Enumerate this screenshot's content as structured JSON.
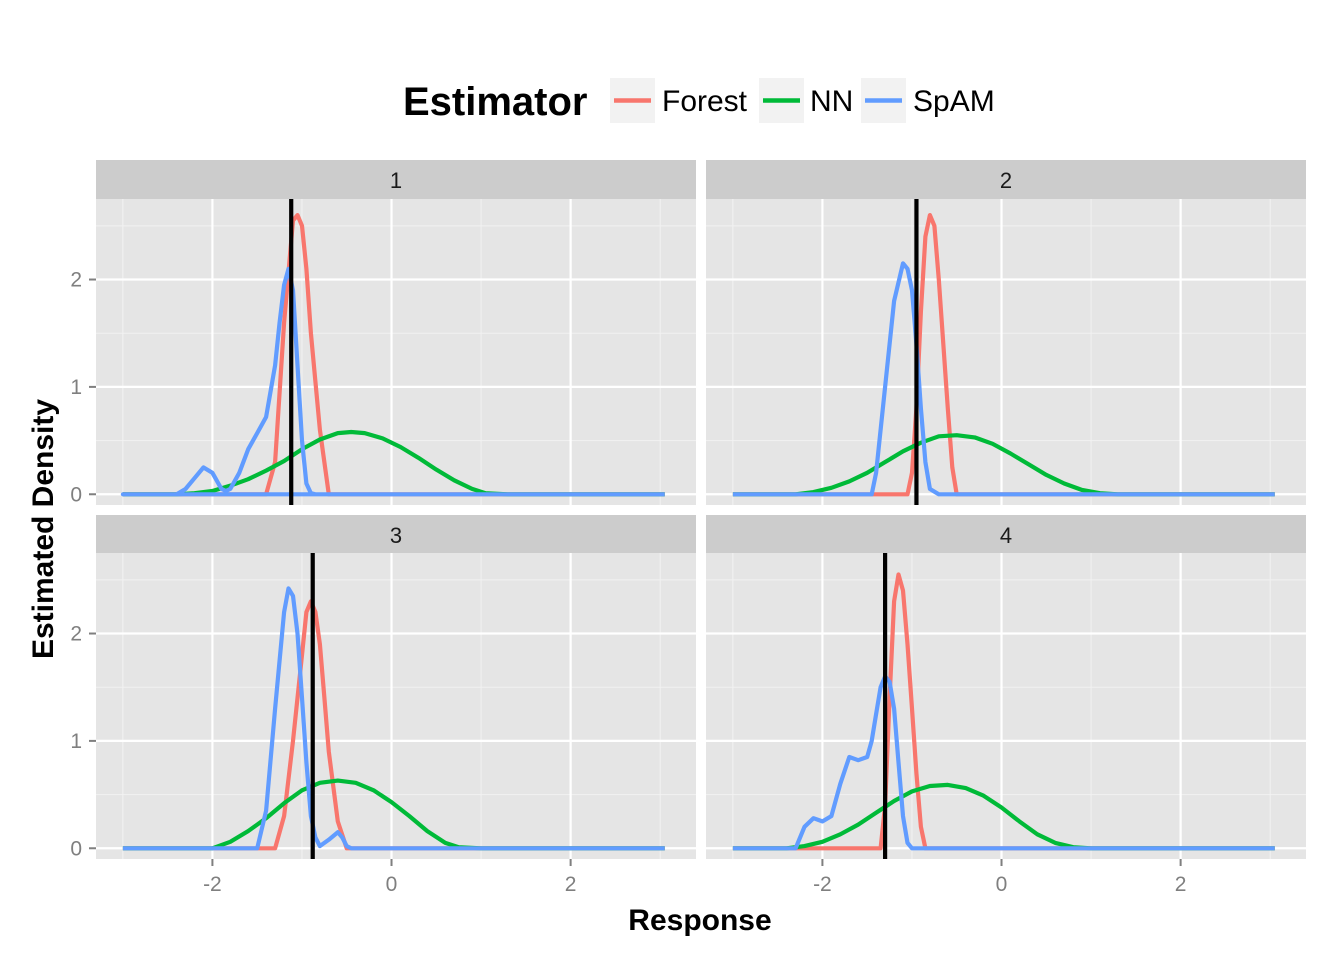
{
  "chart_data": {
    "type": "line",
    "legend": {
      "title": "Estimator",
      "position": "top",
      "items": [
        {
          "label": "Forest",
          "color": "#F8766D"
        },
        {
          "label": "NN",
          "color": "#00BA38"
        },
        {
          "label": "SpAM",
          "color": "#619CFF"
        }
      ]
    },
    "xlabel": "Response",
    "ylabel": "Estimated Density",
    "xlim": [
      -3.3,
      3.4
    ],
    "ylim": [
      -0.1,
      2.75
    ],
    "x_ticks": [
      -2,
      0,
      2
    ],
    "x_tick_labels": [
      "-2",
      "0",
      "2"
    ],
    "y_ticks": [
      0,
      1,
      2
    ],
    "y_tick_labels": [
      "0",
      "1",
      "2"
    ],
    "grid": true,
    "reference_line_color": "#000000",
    "panels": [
      {
        "label": "1",
        "reference_x": -1.12,
        "series": [
          {
            "name": "Forest",
            "x": [
              -3,
              -1.4,
              -1.3,
              -1.2,
              -1.1,
              -1.05,
              -1.0,
              -0.95,
              -0.9,
              -0.8,
              -0.7,
              3.05
            ],
            "y": [
              0,
              0,
              0.3,
              1.6,
              2.55,
              2.6,
              2.5,
              2.1,
              1.5,
              0.6,
              0,
              0
            ]
          },
          {
            "name": "NN",
            "x": [
              -3,
              -2.4,
              -2.2,
              -2.0,
              -1.8,
              -1.6,
              -1.4,
              -1.2,
              -1.0,
              -0.8,
              -0.6,
              -0.45,
              -0.3,
              -0.1,
              0.1,
              0.3,
              0.5,
              0.7,
              0.9,
              1.05,
              1.3,
              3.05
            ],
            "y": [
              0,
              0,
              0.01,
              0.03,
              0.08,
              0.14,
              0.22,
              0.31,
              0.42,
              0.51,
              0.57,
              0.58,
              0.57,
              0.52,
              0.44,
              0.34,
              0.23,
              0.13,
              0.05,
              0.01,
              0,
              0
            ]
          },
          {
            "name": "SpAM",
            "x": [
              -3,
              -2.4,
              -2.3,
              -2.2,
              -2.1,
              -2.0,
              -1.9,
              -1.85,
              -1.8,
              -1.7,
              -1.6,
              -1.5,
              -1.4,
              -1.3,
              -1.25,
              -1.2,
              -1.15,
              -1.1,
              -1.05,
              -1.0,
              -0.95,
              -0.9,
              -0.85,
              -3.0,
              3.05
            ],
            "y": [
              0,
              0,
              0.05,
              0.15,
              0.25,
              0.2,
              0.05,
              0.03,
              0.05,
              0.2,
              0.42,
              0.57,
              0.72,
              1.2,
              1.6,
              1.95,
              2.1,
              1.9,
              1.2,
              0.5,
              0.1,
              0.01,
              0,
              0,
              0
            ]
          }
        ]
      },
      {
        "label": "2",
        "reference_x": -0.95,
        "series": [
          {
            "name": "Forest",
            "x": [
              -3,
              -1.05,
              -1.0,
              -0.95,
              -0.9,
              -0.85,
              -0.8,
              -0.75,
              -0.7,
              -0.65,
              -0.6,
              -0.55,
              -0.5,
              3.05
            ],
            "y": [
              0,
              0,
              0.2,
              0.8,
              1.7,
              2.4,
              2.6,
              2.5,
              2.0,
              1.4,
              0.8,
              0.25,
              0,
              0
            ]
          },
          {
            "name": "NN",
            "x": [
              -3,
              -2.3,
              -2.1,
              -1.9,
              -1.7,
              -1.5,
              -1.3,
              -1.1,
              -0.9,
              -0.7,
              -0.5,
              -0.3,
              -0.1,
              0.1,
              0.3,
              0.5,
              0.7,
              0.9,
              1.1,
              1.3,
              3.05
            ],
            "y": [
              0,
              0,
              0.02,
              0.06,
              0.12,
              0.2,
              0.3,
              0.4,
              0.48,
              0.54,
              0.55,
              0.53,
              0.47,
              0.38,
              0.28,
              0.18,
              0.1,
              0.04,
              0.01,
              0,
              0
            ]
          },
          {
            "name": "SpAM",
            "x": [
              -3,
              -1.45,
              -1.4,
              -1.3,
              -1.2,
              -1.1,
              -1.05,
              -1.0,
              -0.95,
              -0.9,
              -0.85,
              -0.8,
              -0.7,
              3.05
            ],
            "y": [
              0,
              0,
              0.2,
              1.0,
              1.8,
              2.15,
              2.1,
              1.9,
              1.4,
              0.8,
              0.3,
              0.05,
              0,
              0
            ]
          }
        ]
      },
      {
        "label": "3",
        "reference_x": -0.88,
        "series": [
          {
            "name": "Forest",
            "x": [
              -3,
              -1.3,
              -1.2,
              -1.1,
              -1.0,
              -0.95,
              -0.9,
              -0.85,
              -0.8,
              -0.75,
              -0.7,
              -0.6,
              -0.5,
              3.05
            ],
            "y": [
              0,
              0,
              0.3,
              1.0,
              1.8,
              2.2,
              2.3,
              2.2,
              1.9,
              1.4,
              0.9,
              0.25,
              0,
              0
            ]
          },
          {
            "name": "NN",
            "x": [
              -3,
              -2.0,
              -1.8,
              -1.6,
              -1.4,
              -1.2,
              -1.0,
              -0.8,
              -0.6,
              -0.4,
              -0.2,
              0.0,
              0.2,
              0.4,
              0.6,
              0.75,
              1.0,
              3.05
            ],
            "y": [
              0,
              0,
              0.06,
              0.16,
              0.28,
              0.42,
              0.54,
              0.61,
              0.63,
              0.61,
              0.54,
              0.43,
              0.3,
              0.16,
              0.05,
              0.01,
              0,
              0
            ]
          },
          {
            "name": "SpAM",
            "x": [
              -3,
              -1.5,
              -1.4,
              -1.3,
              -1.2,
              -1.15,
              -1.1,
              -1.05,
              -1.0,
              -0.95,
              -0.9,
              -0.85,
              -0.8,
              -0.7,
              -0.6,
              -0.55,
              -0.5,
              -0.45,
              3.05
            ],
            "y": [
              0,
              0,
              0.35,
              1.3,
              2.2,
              2.42,
              2.35,
              2.0,
              1.4,
              0.8,
              0.3,
              0.1,
              0.02,
              0.08,
              0.15,
              0.1,
              0.02,
              0,
              0
            ]
          }
        ]
      },
      {
        "label": "4",
        "reference_x": -1.3,
        "series": [
          {
            "name": "Forest",
            "x": [
              -3,
              -1.35,
              -1.3,
              -1.25,
              -1.2,
              -1.15,
              -1.1,
              -1.05,
              -1.0,
              -0.95,
              -0.9,
              -0.85,
              3.05
            ],
            "y": [
              0,
              0,
              0.4,
              1.4,
              2.3,
              2.55,
              2.4,
              1.9,
              1.3,
              0.7,
              0.2,
              0,
              0
            ]
          },
          {
            "name": "NN",
            "x": [
              -3,
              -2.4,
              -2.2,
              -2.0,
              -1.8,
              -1.6,
              -1.4,
              -1.2,
              -1.0,
              -0.8,
              -0.6,
              -0.4,
              -0.2,
              0.0,
              0.2,
              0.4,
              0.6,
              0.8,
              1.0,
              3.05
            ],
            "y": [
              0,
              0,
              0.02,
              0.06,
              0.13,
              0.22,
              0.33,
              0.44,
              0.53,
              0.58,
              0.59,
              0.56,
              0.49,
              0.38,
              0.25,
              0.13,
              0.05,
              0.01,
              0,
              0
            ]
          },
          {
            "name": "SpAM",
            "x": [
              -3,
              -2.3,
              -2.2,
              -2.1,
              -2.0,
              -1.9,
              -1.8,
              -1.7,
              -1.6,
              -1.5,
              -1.45,
              -1.4,
              -1.35,
              -1.3,
              -1.25,
              -1.2,
              -1.15,
              -1.1,
              -1.05,
              -1.0,
              -0.95,
              -0.9,
              3.05
            ],
            "y": [
              0,
              0,
              0.2,
              0.28,
              0.25,
              0.3,
              0.6,
              0.85,
              0.82,
              0.85,
              1.0,
              1.25,
              1.5,
              1.6,
              1.55,
              1.3,
              0.8,
              0.3,
              0.05,
              0,
              0,
              0,
              0
            ]
          }
        ]
      }
    ]
  }
}
